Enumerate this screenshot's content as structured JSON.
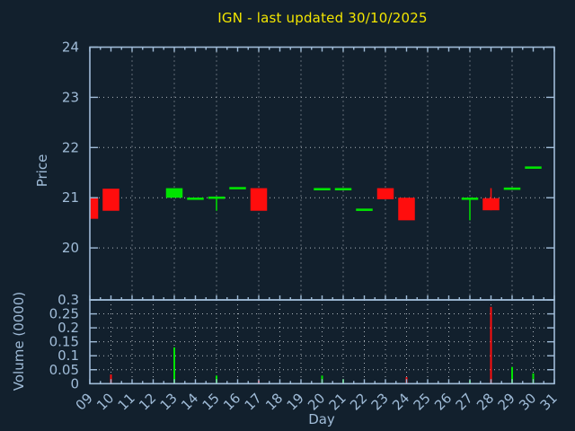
{
  "chart_data": {
    "type": "candlestick",
    "title": "IGN - last updated 30/10/2025",
    "xlabel": "Day",
    "ylabel": "Price",
    "y2label": "Volume (0000)",
    "x_ticks": [
      "09",
      "10",
      "11",
      "12",
      "13",
      "14",
      "15",
      "16",
      "17",
      "18",
      "19",
      "20",
      "21",
      "22",
      "23",
      "24",
      "25",
      "26",
      "27",
      "28",
      "29",
      "30",
      "31"
    ],
    "x_range": [
      9,
      31
    ],
    "price_ticks": [
      24,
      23,
      22,
      21,
      20
    ],
    "price_grid": [
      23,
      22,
      21,
      20
    ],
    "price_range": [
      18.97,
      24
    ],
    "volume_ticks": [
      "0.3",
      "0.25",
      "0.2",
      "0.15",
      "0.1",
      "0.05",
      "0"
    ],
    "volume_range": [
      0,
      0.3
    ],
    "grid": "dotted",
    "candles": [
      {
        "day": 9,
        "open": 21.0,
        "high": 21.0,
        "low": 20.58,
        "close": 20.58
      },
      {
        "day": 10,
        "open": 21.18,
        "high": 21.18,
        "low": 20.74,
        "close": 20.74
      },
      {
        "day": 13,
        "open": 21.0,
        "high": 21.19,
        "low": 21.0,
        "close": 21.19
      },
      {
        "day": 14,
        "open": 20.98,
        "high": 20.98,
        "low": 20.98,
        "close": 20.98
      },
      {
        "day": 15,
        "open": 21.0,
        "high": 21.0,
        "low": 20.74,
        "close": 21.0
      },
      {
        "day": 16,
        "open": 21.19,
        "high": 21.19,
        "low": 21.19,
        "close": 21.19
      },
      {
        "day": 17,
        "open": 21.19,
        "high": 21.19,
        "low": 20.74,
        "close": 20.74
      },
      {
        "day": 20,
        "open": 21.17,
        "high": 21.17,
        "low": 21.17,
        "close": 21.17
      },
      {
        "day": 21,
        "open": 21.17,
        "high": 21.17,
        "low": 21.17,
        "close": 21.17
      },
      {
        "day": 22,
        "open": 20.76,
        "high": 20.76,
        "low": 20.76,
        "close": 20.76
      },
      {
        "day": 23,
        "open": 21.19,
        "high": 21.19,
        "low": 20.97,
        "close": 20.97
      },
      {
        "day": 24,
        "open": 21.0,
        "high": 21.0,
        "low": 20.55,
        "close": 20.55
      },
      {
        "day": 27,
        "open": 20.98,
        "high": 20.98,
        "low": 20.55,
        "close": 20.98
      },
      {
        "day": 28,
        "open": 20.99,
        "high": 21.19,
        "low": 20.75,
        "close": 20.75
      },
      {
        "day": 29,
        "open": 21.18,
        "high": 21.18,
        "low": 21.18,
        "close": 21.18
      },
      {
        "day": 30,
        "open": 21.6,
        "high": 21.6,
        "low": 21.6,
        "close": 21.6
      }
    ],
    "volumes": [
      {
        "day": 10,
        "value": 0.033
      },
      {
        "day": 13,
        "value": 0.13
      },
      {
        "day": 15,
        "value": 0.029
      },
      {
        "day": 17,
        "value": 0.011
      },
      {
        "day": 20,
        "value": 0.029
      },
      {
        "day": 21,
        "value": 0.016
      },
      {
        "day": 24,
        "value": 0.023
      },
      {
        "day": 27,
        "value": 0.012
      },
      {
        "day": 28,
        "value": 0.275
      },
      {
        "day": 29,
        "value": 0.06
      },
      {
        "day": 30,
        "value": 0.037
      }
    ],
    "colors": {
      "up": "#00e400",
      "down": "#ff0d0d",
      "axis": "#a0bcd8",
      "grid": "#c9cfd6",
      "title": "#f3e600",
      "background": "#12202d"
    }
  }
}
